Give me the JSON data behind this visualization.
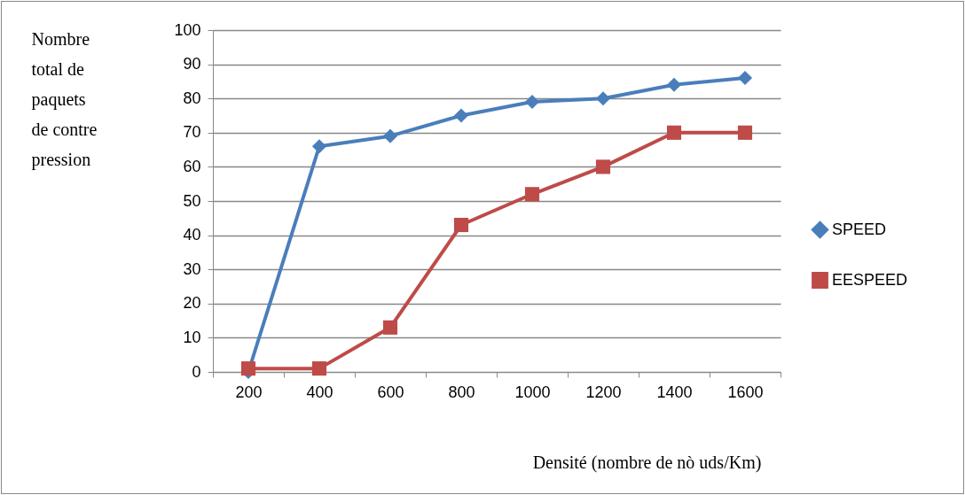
{
  "chart_data": {
    "type": "line",
    "xlabel": "Densité (nombre de nò uds/Km)",
    "ylabel": "Nombre total de paquets de contre pression",
    "categories": [
      "200",
      "400",
      "600",
      "800",
      "1000",
      "1200",
      "1400",
      "1600"
    ],
    "series": [
      {
        "name": "SPEED",
        "color": "#4a7ebb",
        "marker": "diamond",
        "values": [
          0,
          66,
          69,
          75,
          79,
          80,
          84,
          86
        ]
      },
      {
        "name": "EESPEED",
        "color": "#be4b48",
        "marker": "square",
        "values": [
          1,
          1,
          13,
          43,
          52,
          60,
          70,
          70
        ]
      }
    ],
    "ylim": [
      0,
      100
    ],
    "yticks": [
      0,
      10,
      20,
      30,
      40,
      50,
      60,
      70,
      80,
      90,
      100
    ],
    "grid": "y",
    "legend": "right"
  }
}
